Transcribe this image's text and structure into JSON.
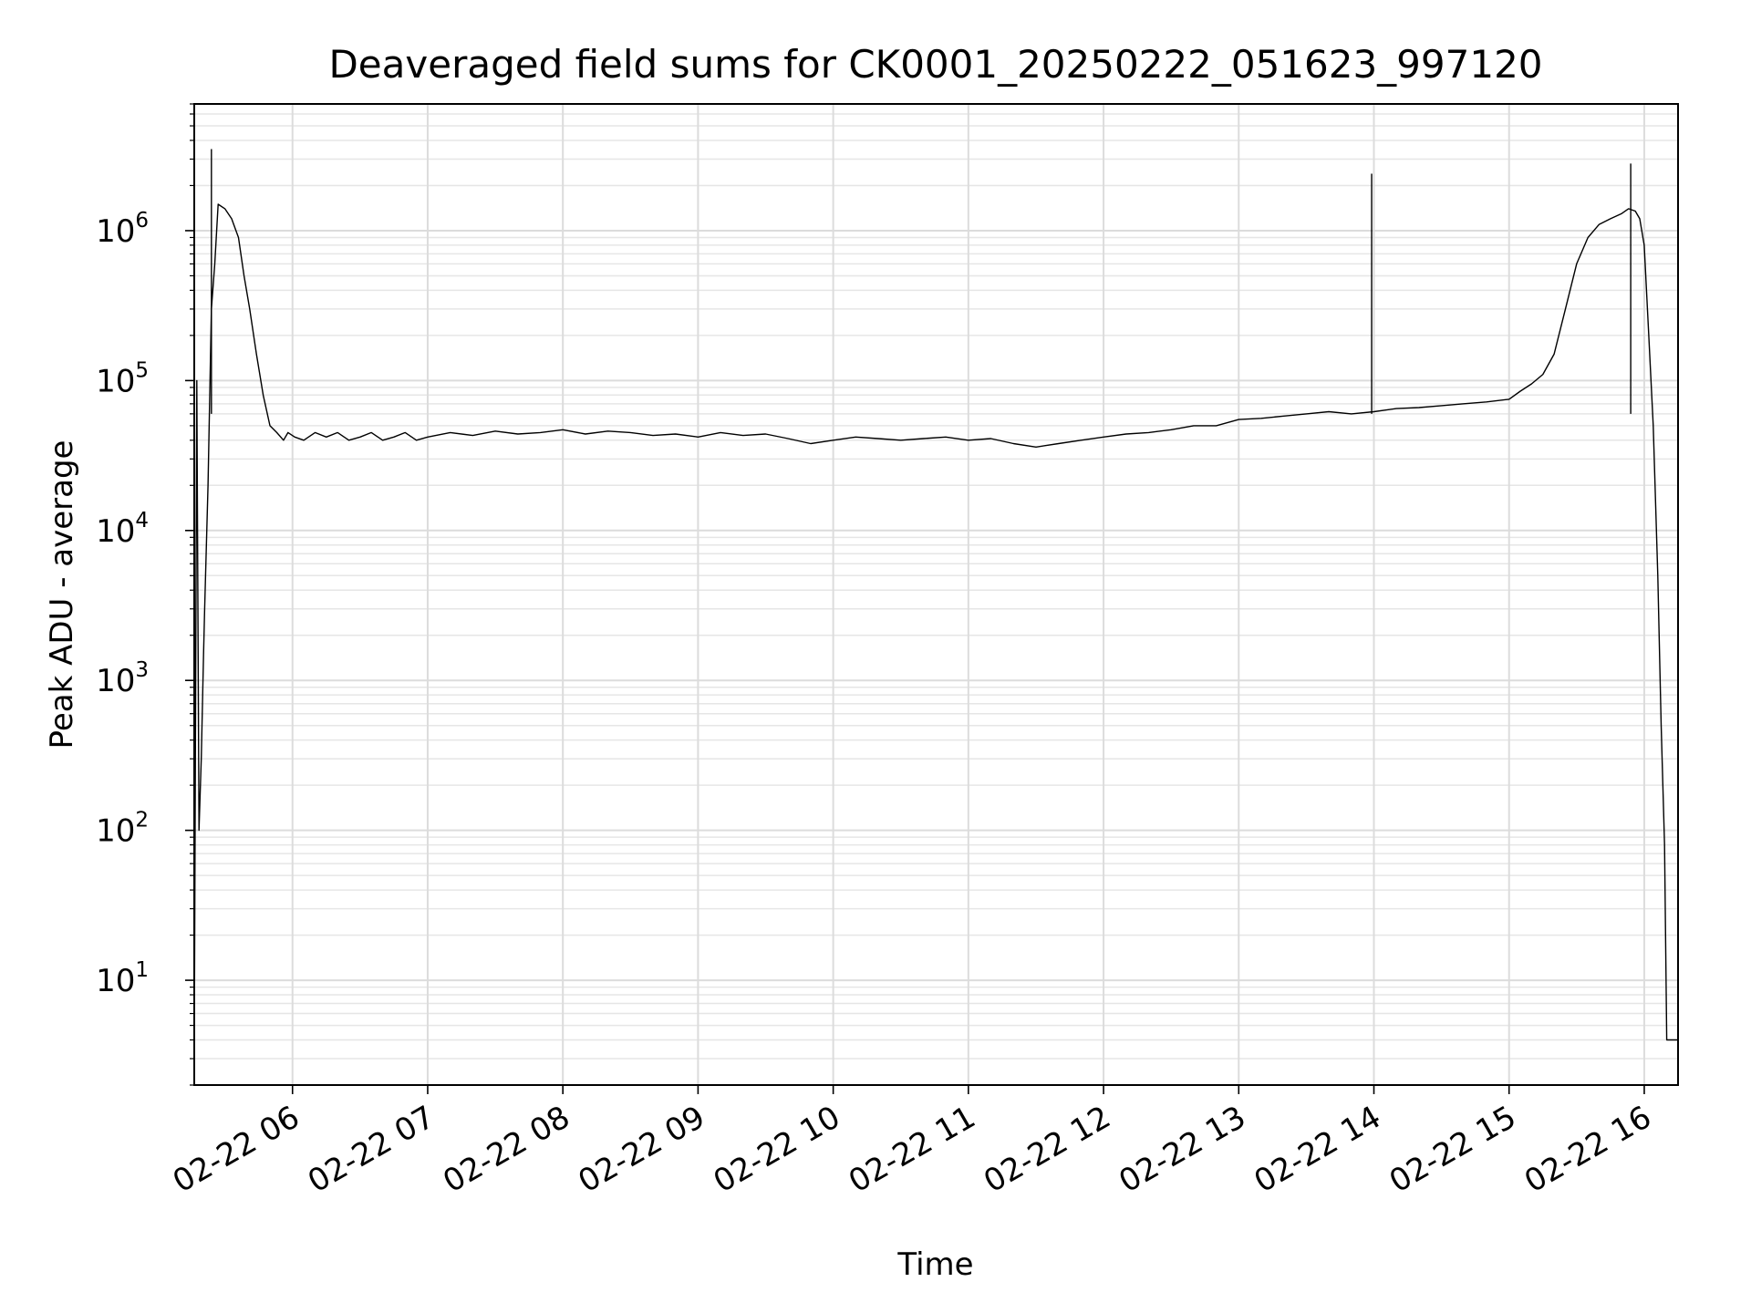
{
  "chart_data": {
    "type": "line",
    "title": "Deaveraged field sums for CK0001_20250222_051623_997120",
    "xlabel": "Time",
    "ylabel": "Peak ADU - average",
    "y_scale": "log",
    "ylim": [
      2,
      7000000
    ],
    "xlim": [
      "2025-02-22 05:16:23",
      "2025-02-22 16:15:00"
    ],
    "grid": true,
    "x_ticks": [
      {
        "value": "2025-02-22 06:00",
        "label": "02-22 06"
      },
      {
        "value": "2025-02-22 07:00",
        "label": "02-22 07"
      },
      {
        "value": "2025-02-22 08:00",
        "label": "02-22 08"
      },
      {
        "value": "2025-02-22 09:00",
        "label": "02-22 09"
      },
      {
        "value": "2025-02-22 10:00",
        "label": "02-22 10"
      },
      {
        "value": "2025-02-22 11:00",
        "label": "02-22 11"
      },
      {
        "value": "2025-02-22 12:00",
        "label": "02-22 12"
      },
      {
        "value": "2025-02-22 13:00",
        "label": "02-22 13"
      },
      {
        "value": "2025-02-22 14:00",
        "label": "02-22 14"
      },
      {
        "value": "2025-02-22 15:00",
        "label": "02-22 15"
      },
      {
        "value": "2025-02-22 16:00",
        "label": "02-22 16"
      }
    ],
    "y_ticks": [
      {
        "value": 10,
        "base": "10",
        "exp": "1"
      },
      {
        "value": 100,
        "base": "10",
        "exp": "2"
      },
      {
        "value": 1000,
        "base": "10",
        "exp": "3"
      },
      {
        "value": 10000,
        "base": "10",
        "exp": "4"
      },
      {
        "value": 100000,
        "base": "10",
        "exp": "5"
      },
      {
        "value": 1000000,
        "base": "10",
        "exp": "6"
      }
    ],
    "series": [
      {
        "color": "#000000",
        "x": [
          "2025-02-22 05:16:23",
          "2025-02-22 05:17:30",
          "2025-02-22 05:18:30",
          "2025-02-22 05:19:30",
          "2025-02-22 05:20:30",
          "2025-02-22 05:21:00",
          "2025-02-22 05:22:30",
          "2025-02-22 05:24:00",
          "2025-02-22 05:25:30",
          "2025-02-22 05:27:00",
          "2025-02-22 05:30:00",
          "2025-02-22 05:33:00",
          "2025-02-22 05:36:00",
          "2025-02-22 05:38:30",
          "2025-02-22 05:41:00",
          "2025-02-22 05:44:00",
          "2025-02-22 05:47:00",
          "2025-02-22 05:50:00",
          "2025-02-22 05:53:00",
          "2025-02-22 05:56:00",
          "2025-02-22 05:58:00",
          "2025-02-22 06:01:00",
          "2025-02-22 06:05:00",
          "2025-02-22 06:10:00",
          "2025-02-22 06:15:00",
          "2025-02-22 06:20:00",
          "2025-02-22 06:25:00",
          "2025-02-22 06:30:00",
          "2025-02-22 06:35:00",
          "2025-02-22 06:40:00",
          "2025-02-22 06:45:00",
          "2025-02-22 06:50:00",
          "2025-02-22 06:55:00",
          "2025-02-22 07:00:00",
          "2025-02-22 07:10:00",
          "2025-02-22 07:20:00",
          "2025-02-22 07:30:00",
          "2025-02-22 07:40:00",
          "2025-02-22 07:50:00",
          "2025-02-22 08:00:00",
          "2025-02-22 08:10:00",
          "2025-02-22 08:20:00",
          "2025-02-22 08:30:00",
          "2025-02-22 08:40:00",
          "2025-02-22 08:50:00",
          "2025-02-22 09:00:00",
          "2025-02-22 09:10:00",
          "2025-02-22 09:20:00",
          "2025-02-22 09:30:00",
          "2025-02-22 09:40:00",
          "2025-02-22 09:50:00",
          "2025-02-22 10:00:00",
          "2025-02-22 10:10:00",
          "2025-02-22 10:20:00",
          "2025-02-22 10:30:00",
          "2025-02-22 10:40:00",
          "2025-02-22 10:50:00",
          "2025-02-22 11:00:00",
          "2025-02-22 11:10:00",
          "2025-02-22 11:20:00",
          "2025-02-22 11:30:00",
          "2025-02-22 11:40:00",
          "2025-02-22 11:50:00",
          "2025-02-22 12:00:00",
          "2025-02-22 12:10:00",
          "2025-02-22 12:20:00",
          "2025-02-22 12:30:00",
          "2025-02-22 12:40:00",
          "2025-02-22 12:50:00",
          "2025-02-22 13:00:00",
          "2025-02-22 13:10:00",
          "2025-02-22 13:20:00",
          "2025-02-22 13:30:00",
          "2025-02-22 13:40:00",
          "2025-02-22 13:50:00",
          "2025-02-22 14:00:00",
          "2025-02-22 14:10:00",
          "2025-02-22 14:20:00",
          "2025-02-22 14:30:00",
          "2025-02-22 14:40:00",
          "2025-02-22 14:50:00",
          "2025-02-22 15:00:00",
          "2025-02-22 15:05:00",
          "2025-02-22 15:10:00",
          "2025-02-22 15:15:00",
          "2025-02-22 15:20:00",
          "2025-02-22 15:25:00",
          "2025-02-22 15:30:00",
          "2025-02-22 15:35:00",
          "2025-02-22 15:40:00",
          "2025-02-22 15:45:00",
          "2025-02-22 15:50:00",
          "2025-02-22 15:53:00",
          "2025-02-22 15:56:00",
          "2025-02-22 15:58:00",
          "2025-02-22 16:00:00",
          "2025-02-22 16:02:00",
          "2025-02-22 16:04:00",
          "2025-02-22 16:06:00",
          "2025-02-22 16:07:30",
          "2025-02-22 16:09:00",
          "2025-02-22 16:10:00",
          "2025-02-22 16:12:00",
          "2025-02-22 16:15:00"
        ],
        "y": [
          3,
          100000,
          100,
          300,
          1500,
          3000,
          20000,
          300000,
          600000,
          1500000,
          1400000,
          1200000,
          900000,
          500000,
          300000,
          150000,
          80000,
          50000,
          45000,
          40000,
          45000,
          42000,
          40000,
          45000,
          42000,
          45000,
          40000,
          42000,
          45000,
          40000,
          42000,
          45000,
          40000,
          42000,
          45000,
          43000,
          46000,
          44000,
          45000,
          47000,
          44000,
          46000,
          45000,
          43000,
          44000,
          42000,
          45000,
          43000,
          44000,
          41000,
          38000,
          40000,
          42000,
          41000,
          40000,
          41000,
          42000,
          40000,
          41000,
          38000,
          36000,
          38000,
          40000,
          42000,
          44000,
          45000,
          47000,
          50000,
          50000,
          55000,
          56000,
          58000,
          60000,
          62000,
          60000,
          62000,
          65000,
          66000,
          68000,
          70000,
          72000,
          75000,
          85000,
          95000,
          110000,
          150000,
          300000,
          600000,
          900000,
          1100000,
          1200000,
          1300000,
          1400000,
          1350000,
          1200000,
          800000,
          200000,
          50000,
          5000,
          500,
          80,
          4,
          4,
          4
        ]
      }
    ],
    "notable_spikes": [
      {
        "x": "2025-02-22 05:24:00",
        "y": 3500000
      },
      {
        "x": "2025-02-22 13:59:00",
        "y": 2400000
      },
      {
        "x": "2025-02-22 15:54:00",
        "y": 2800000
      }
    ]
  }
}
